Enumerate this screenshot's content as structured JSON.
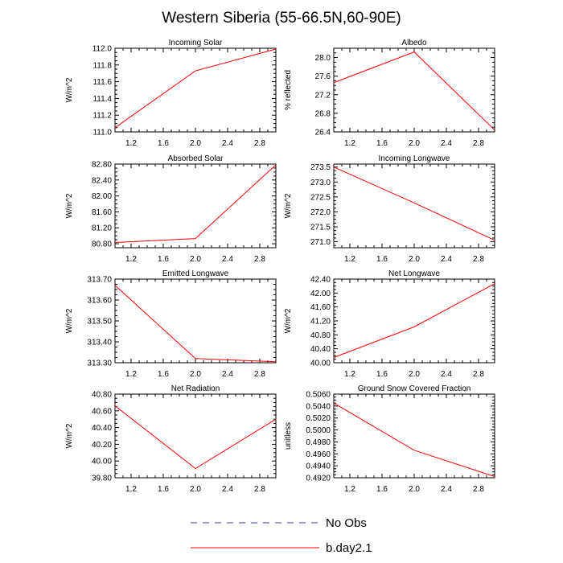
{
  "title": "Western Siberia (55-66.5N,60-90E)",
  "legend": [
    {
      "label": "No Obs",
      "color": "#3a3aa0",
      "dashed": true
    },
    {
      "label": "b.day2.1",
      "color": "#ff0000",
      "dashed": false
    }
  ],
  "chart_data": [
    {
      "type": "line",
      "title": "Incoming Solar",
      "ylabel": "W/m^2",
      "xlim": [
        1.0,
        3.0
      ],
      "ylim": [
        111.0,
        112.0
      ],
      "xticks": [
        "1.2",
        "1.6",
        "2.0",
        "2.4",
        "2.8"
      ],
      "yticks": [
        "111.0",
        "111.2",
        "111.4",
        "111.6",
        "111.8",
        "112.0"
      ],
      "x": [
        1,
        2,
        3
      ],
      "series": [
        {
          "name": "b.day2.1",
          "values": [
            111.05,
            111.73,
            111.99
          ]
        }
      ]
    },
    {
      "type": "line",
      "title": "Albedo",
      "ylabel": "% reflected",
      "xlim": [
        1.0,
        3.0
      ],
      "ylim": [
        26.4,
        28.2
      ],
      "xticks": [
        "1.2",
        "1.6",
        "2.0",
        "2.4",
        "2.8"
      ],
      "yticks": [
        "26.4",
        "26.8",
        "27.2",
        "27.6",
        "28.0"
      ],
      "x": [
        1,
        2,
        3
      ],
      "series": [
        {
          "name": "b.day2.1",
          "values": [
            27.46,
            28.12,
            26.44
          ]
        }
      ]
    },
    {
      "type": "line",
      "title": "Absorbed Solar",
      "ylabel": "W/m^2",
      "xlim": [
        1.0,
        3.0
      ],
      "ylim": [
        80.7,
        82.8
      ],
      "xticks": [
        "1.2",
        "1.6",
        "2.0",
        "2.4",
        "2.8"
      ],
      "yticks": [
        "80.80",
        "81.20",
        "81.60",
        "82.00",
        "82.40",
        "82.80"
      ],
      "x": [
        1,
        2,
        3
      ],
      "series": [
        {
          "name": "b.day2.1",
          "values": [
            80.83,
            80.93,
            82.78
          ]
        }
      ]
    },
    {
      "type": "line",
      "title": "Incoming Longwave",
      "ylabel": "W/m^2",
      "xlim": [
        1.0,
        3.0
      ],
      "ylim": [
        270.8,
        273.6
      ],
      "xticks": [
        "1.2",
        "1.6",
        "2.0",
        "2.4",
        "2.8"
      ],
      "yticks": [
        "271.0",
        "271.5",
        "272.0",
        "272.5",
        "273.0",
        "273.5"
      ],
      "x": [
        1,
        2,
        3
      ],
      "series": [
        {
          "name": "b.day2.1",
          "values": [
            273.5,
            272.3,
            271.05
          ]
        }
      ]
    },
    {
      "type": "line",
      "title": "Emitted Longwave",
      "ylabel": "W/m^2",
      "xlim": [
        1.0,
        3.0
      ],
      "ylim": [
        313.3,
        313.7
      ],
      "xticks": [
        "1.2",
        "1.6",
        "2.0",
        "2.4",
        "2.8"
      ],
      "yticks": [
        "313.30",
        "313.40",
        "313.50",
        "313.60",
        "313.70"
      ],
      "x": [
        1,
        2,
        3
      ],
      "series": [
        {
          "name": "b.day2.1",
          "values": [
            313.67,
            313.32,
            313.305
          ]
        }
      ]
    },
    {
      "type": "line",
      "title": "Net Longwave",
      "ylabel": "W/m^2",
      "xlim": [
        1.0,
        3.0
      ],
      "ylim": [
        40.0,
        42.4
      ],
      "xticks": [
        "1.2",
        "1.6",
        "2.0",
        "2.4",
        "2.8"
      ],
      "yticks": [
        "40.00",
        "40.40",
        "40.80",
        "41.20",
        "41.60",
        "42.00",
        "42.40"
      ],
      "x": [
        1,
        2,
        3
      ],
      "series": [
        {
          "name": "b.day2.1",
          "values": [
            40.15,
            41.03,
            42.27
          ]
        }
      ]
    },
    {
      "type": "line",
      "title": "Net Radiation",
      "ylabel": "W/m^2",
      "xlim": [
        1.0,
        3.0
      ],
      "ylim": [
        39.8,
        40.8
      ],
      "xticks": [
        "1.2",
        "1.6",
        "2.0",
        "2.4",
        "2.8"
      ],
      "yticks": [
        "39.80",
        "40.00",
        "40.20",
        "40.40",
        "40.60",
        "40.80"
      ],
      "x": [
        1,
        2,
        3
      ],
      "series": [
        {
          "name": "b.day2.1",
          "values": [
            40.66,
            39.91,
            40.5
          ]
        }
      ]
    },
    {
      "type": "line",
      "title": "Ground Snow Covered Fraction",
      "ylabel": "unitless",
      "xlim": [
        1.0,
        3.0
      ],
      "ylim": [
        0.492,
        0.506
      ],
      "xticks": [
        "1.2",
        "1.6",
        "2.0",
        "2.4",
        "2.8"
      ],
      "yticks": [
        "0.4920",
        "0.4940",
        "0.4960",
        "0.4980",
        "0.5000",
        "0.5020",
        "0.5040",
        "0.5060"
      ],
      "x": [
        1,
        2,
        3
      ],
      "series": [
        {
          "name": "b.day2.1",
          "values": [
            0.5045,
            0.4966,
            0.4922
          ]
        }
      ]
    }
  ]
}
